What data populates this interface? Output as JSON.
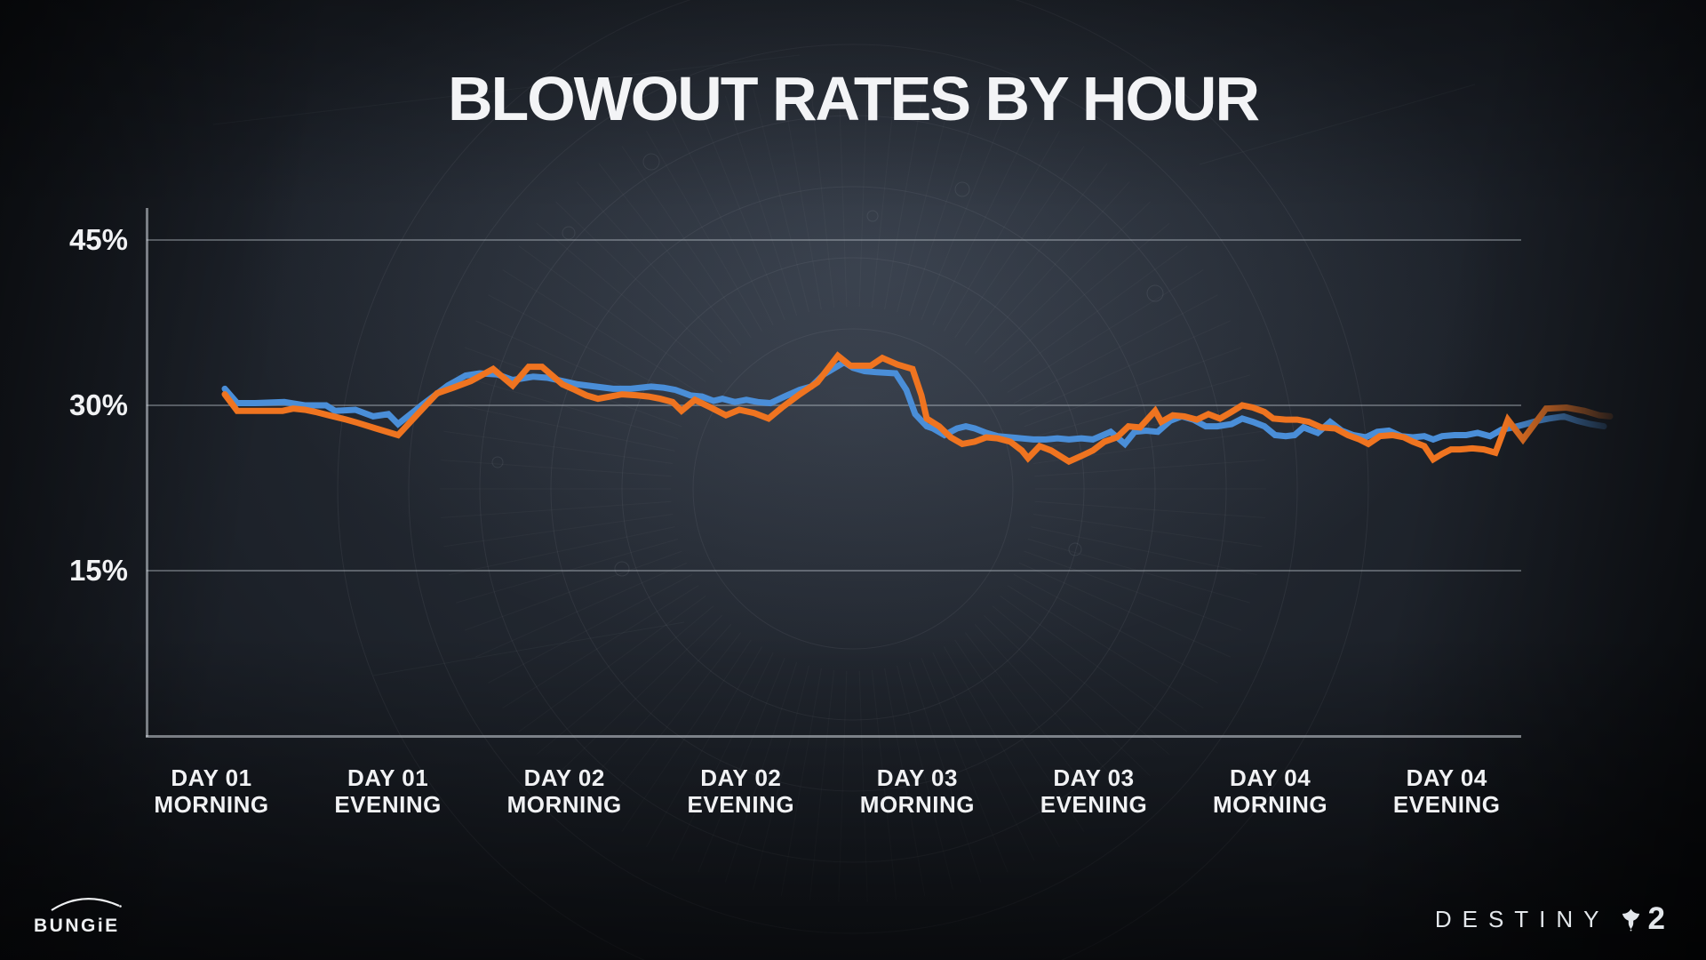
{
  "title": "BLOWOUT RATES BY HOUR",
  "branding": {
    "bungie": "BUNGiE",
    "destiny_word": "DESTINY",
    "destiny_number": "2"
  },
  "chart_data": {
    "type": "line",
    "title": "BLOWOUT RATES BY HOUR",
    "xlabel": "",
    "ylabel": "",
    "unit": "%",
    "ylim": [
      0,
      48
    ],
    "y_ticks": [
      45,
      30,
      15
    ],
    "y_tick_labels": [
      "45%",
      "30%",
      "15%"
    ],
    "grid": "horizontal",
    "legend_position": "none",
    "x_tick_labels": [
      [
        "DAY 01",
        "MORNING"
      ],
      [
        "DAY 01",
        "EVENING"
      ],
      [
        "DAY 02",
        "MORNING"
      ],
      [
        "DAY 02",
        "EVENING"
      ],
      [
        "DAY 03",
        "MORNING"
      ],
      [
        "DAY 03",
        "EVENING"
      ],
      [
        "DAY 04",
        "MORNING"
      ],
      [
        "DAY 04",
        "EVENING"
      ]
    ],
    "series": [
      {
        "name": "blue-line",
        "color": "#4a8ed8",
        "points": [
          [
            253,
            31.5
          ],
          [
            267,
            30.2
          ],
          [
            287,
            30.2
          ],
          [
            320,
            30.3
          ],
          [
            343,
            30.0
          ],
          [
            367,
            30.0
          ],
          [
            377,
            29.5
          ],
          [
            400,
            29.6
          ],
          [
            420,
            29.0
          ],
          [
            437,
            29.2
          ],
          [
            448,
            28.3
          ],
          [
            476,
            30.1
          ],
          [
            504,
            31.8
          ],
          [
            524,
            32.7
          ],
          [
            540,
            32.9
          ],
          [
            560,
            32.8
          ],
          [
            577,
            32.3
          ],
          [
            600,
            32.6
          ],
          [
            616,
            32.5
          ],
          [
            633,
            32.2
          ],
          [
            650,
            31.9
          ],
          [
            670,
            31.7
          ],
          [
            690,
            31.5
          ],
          [
            710,
            31.5
          ],
          [
            733,
            31.7
          ],
          [
            747,
            31.6
          ],
          [
            760,
            31.4
          ],
          [
            777,
            30.9
          ],
          [
            790,
            30.8
          ],
          [
            803,
            30.4
          ],
          [
            813,
            30.6
          ],
          [
            827,
            30.3
          ],
          [
            840,
            30.5
          ],
          [
            853,
            30.3
          ],
          [
            867,
            30.2
          ],
          [
            883,
            30.8
          ],
          [
            900,
            31.4
          ],
          [
            913,
            31.7
          ],
          [
            927,
            32.8
          ],
          [
            950,
            33.9
          ],
          [
            960,
            33.4
          ],
          [
            973,
            33.1
          ],
          [
            987,
            33.0
          ],
          [
            1008,
            32.9
          ],
          [
            1020,
            31.4
          ],
          [
            1030,
            29.2
          ],
          [
            1043,
            28.1
          ],
          [
            1050,
            27.9
          ],
          [
            1063,
            27.3
          ],
          [
            1077,
            27.9
          ],
          [
            1087,
            28.1
          ],
          [
            1097,
            27.9
          ],
          [
            1110,
            27.5
          ],
          [
            1123,
            27.2
          ],
          [
            1137,
            27.1
          ],
          [
            1150,
            27.0
          ],
          [
            1163,
            26.9
          ],
          [
            1177,
            26.9
          ],
          [
            1190,
            27.0
          ],
          [
            1203,
            26.9
          ],
          [
            1217,
            27.0
          ],
          [
            1230,
            26.9
          ],
          [
            1250,
            27.6
          ],
          [
            1266,
            26.5
          ],
          [
            1277,
            27.6
          ],
          [
            1290,
            27.7
          ],
          [
            1303,
            27.6
          ],
          [
            1317,
            28.6
          ],
          [
            1330,
            29.0
          ],
          [
            1343,
            28.7
          ],
          [
            1357,
            28.1
          ],
          [
            1370,
            28.1
          ],
          [
            1386,
            28.3
          ],
          [
            1398,
            28.8
          ],
          [
            1410,
            28.5
          ],
          [
            1423,
            28.1
          ],
          [
            1435,
            27.3
          ],
          [
            1447,
            27.2
          ],
          [
            1457,
            27.3
          ],
          [
            1467,
            28.0
          ],
          [
            1483,
            27.5
          ],
          [
            1497,
            28.5
          ],
          [
            1510,
            27.7
          ],
          [
            1523,
            27.3
          ],
          [
            1537,
            27.1
          ],
          [
            1550,
            27.6
          ],
          [
            1563,
            27.7
          ],
          [
            1577,
            27.2
          ],
          [
            1590,
            27.1
          ],
          [
            1603,
            27.2
          ],
          [
            1613,
            26.9
          ],
          [
            1623,
            27.2
          ],
          [
            1637,
            27.3
          ],
          [
            1650,
            27.3
          ],
          [
            1663,
            27.5
          ],
          [
            1677,
            27.2
          ],
          [
            1690,
            27.8
          ],
          [
            1703,
            28.0
          ],
          [
            1717,
            28.3
          ],
          [
            1730,
            28.6
          ],
          [
            1743,
            28.8
          ],
          [
            1760,
            29.0
          ],
          [
            1775,
            28.6
          ],
          [
            1790,
            28.3
          ],
          [
            1805,
            28.1
          ]
        ]
      },
      {
        "name": "orange-line",
        "color": "#ef7420",
        "points": [
          [
            253,
            31.0
          ],
          [
            267,
            29.5
          ],
          [
            287,
            29.5
          ],
          [
            318,
            29.5
          ],
          [
            330,
            29.7
          ],
          [
            343,
            29.6
          ],
          [
            355,
            29.4
          ],
          [
            370,
            29.1
          ],
          [
            390,
            28.7
          ],
          [
            403,
            28.4
          ],
          [
            423,
            27.9
          ],
          [
            448,
            27.3
          ],
          [
            470,
            29.2
          ],
          [
            492,
            31.1
          ],
          [
            510,
            31.6
          ],
          [
            530,
            32.2
          ],
          [
            555,
            33.3
          ],
          [
            577,
            31.8
          ],
          [
            595,
            33.5
          ],
          [
            610,
            33.5
          ],
          [
            633,
            31.9
          ],
          [
            647,
            31.4
          ],
          [
            660,
            30.9
          ],
          [
            673,
            30.6
          ],
          [
            687,
            30.8
          ],
          [
            700,
            31.0
          ],
          [
            717,
            30.9
          ],
          [
            730,
            30.8
          ],
          [
            743,
            30.6
          ],
          [
            757,
            30.3
          ],
          [
            767,
            29.5
          ],
          [
            782,
            30.5
          ],
          [
            800,
            29.8
          ],
          [
            817,
            29.1
          ],
          [
            832,
            29.6
          ],
          [
            849,
            29.3
          ],
          [
            865,
            28.8
          ],
          [
            880,
            29.8
          ],
          [
            900,
            31.0
          ],
          [
            920,
            32.1
          ],
          [
            943,
            34.5
          ],
          [
            957,
            33.6
          ],
          [
            980,
            33.6
          ],
          [
            993,
            34.3
          ],
          [
            1010,
            33.7
          ],
          [
            1027,
            33.3
          ],
          [
            1037,
            30.9
          ],
          [
            1043,
            28.8
          ],
          [
            1057,
            28.1
          ],
          [
            1070,
            27.1
          ],
          [
            1083,
            26.5
          ],
          [
            1097,
            26.7
          ],
          [
            1110,
            27.1
          ],
          [
            1123,
            27.0
          ],
          [
            1137,
            26.7
          ],
          [
            1150,
            25.9
          ],
          [
            1157,
            25.2
          ],
          [
            1170,
            26.3
          ],
          [
            1183,
            25.9
          ],
          [
            1203,
            24.9
          ],
          [
            1217,
            25.4
          ],
          [
            1230,
            25.9
          ],
          [
            1243,
            26.7
          ],
          [
            1257,
            27.1
          ],
          [
            1270,
            28.1
          ],
          [
            1283,
            28.0
          ],
          [
            1300,
            29.5
          ],
          [
            1307,
            28.5
          ],
          [
            1320,
            29.1
          ],
          [
            1333,
            29.0
          ],
          [
            1347,
            28.7
          ],
          [
            1360,
            29.2
          ],
          [
            1373,
            28.8
          ],
          [
            1386,
            29.4
          ],
          [
            1398,
            30.0
          ],
          [
            1410,
            29.8
          ],
          [
            1423,
            29.4
          ],
          [
            1433,
            28.8
          ],
          [
            1447,
            28.7
          ],
          [
            1460,
            28.7
          ],
          [
            1473,
            28.5
          ],
          [
            1487,
            28.0
          ],
          [
            1503,
            27.9
          ],
          [
            1517,
            27.3
          ],
          [
            1530,
            26.9
          ],
          [
            1540,
            26.5
          ],
          [
            1553,
            27.2
          ],
          [
            1567,
            27.3
          ],
          [
            1580,
            27.1
          ],
          [
            1590,
            26.7
          ],
          [
            1603,
            26.3
          ],
          [
            1613,
            25.1
          ],
          [
            1623,
            25.6
          ],
          [
            1633,
            26.0
          ],
          [
            1643,
            26.0
          ],
          [
            1657,
            26.1
          ],
          [
            1670,
            26.0
          ],
          [
            1683,
            25.7
          ],
          [
            1697,
            28.7
          ],
          [
            1714,
            26.9
          ],
          [
            1740,
            29.7
          ],
          [
            1763,
            29.8
          ],
          [
            1783,
            29.5
          ],
          [
            1800,
            29.1
          ],
          [
            1812,
            29.0
          ]
        ]
      }
    ]
  }
}
